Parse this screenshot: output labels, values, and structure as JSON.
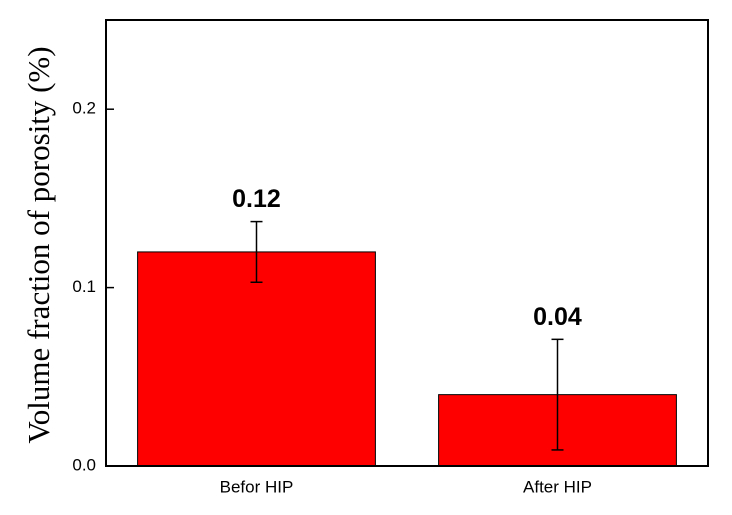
{
  "chart_data": {
    "type": "bar",
    "y_label": "Volume fraction of porosity (%)",
    "categories": [
      "Befor HIP",
      "After HIP"
    ],
    "values": [
      0.12,
      0.04
    ],
    "errors": [
      0.017,
      0.031
    ],
    "color": "#ff0000",
    "ylim": [
      0,
      0.25
    ],
    "yticks": [
      {
        "value": 0,
        "label": "0.0"
      },
      0.1,
      0.2
    ]
  }
}
